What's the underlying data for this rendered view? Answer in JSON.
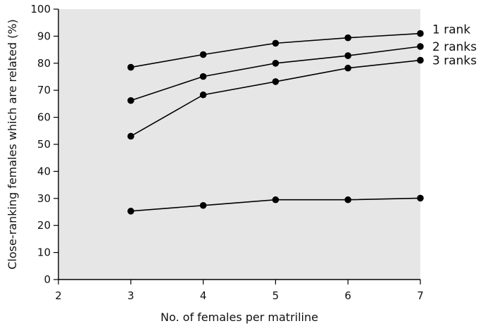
{
  "chart_data": {
    "type": "line",
    "title": "",
    "xlabel": "No. of females per matriline",
    "ylabel": "Close-ranking females which are related (%)",
    "xlim": [
      2,
      7
    ],
    "ylim": [
      0,
      100
    ],
    "xticks": [
      2,
      3,
      4,
      5,
      6,
      7
    ],
    "yticks": [
      0,
      10,
      20,
      30,
      40,
      50,
      60,
      70,
      80,
      90,
      100
    ],
    "grid": false,
    "legend": "none",
    "plot_background": "#e6e6e6",
    "line_color": "#000000",
    "series": [
      {
        "name": "1 rank",
        "x": [
          3,
          4,
          5,
          6,
          7
        ],
        "values": [
          78.5,
          83.2,
          87.4,
          89.4,
          91.0
        ]
      },
      {
        "name": "2 ranks",
        "x": [
          3,
          4,
          5,
          6,
          7
        ],
        "values": [
          66.2,
          75.1,
          80.0,
          82.8,
          86.2
        ]
      },
      {
        "name": "3 ranks",
        "x": [
          3,
          4,
          5,
          6,
          7
        ],
        "values": [
          53.0,
          68.3,
          73.2,
          78.2,
          81.1
        ]
      },
      {
        "x": [
          3,
          4,
          5,
          6,
          7
        ],
        "values": [
          25.3,
          27.4,
          29.5,
          29.5,
          30.1
        ]
      }
    ]
  }
}
